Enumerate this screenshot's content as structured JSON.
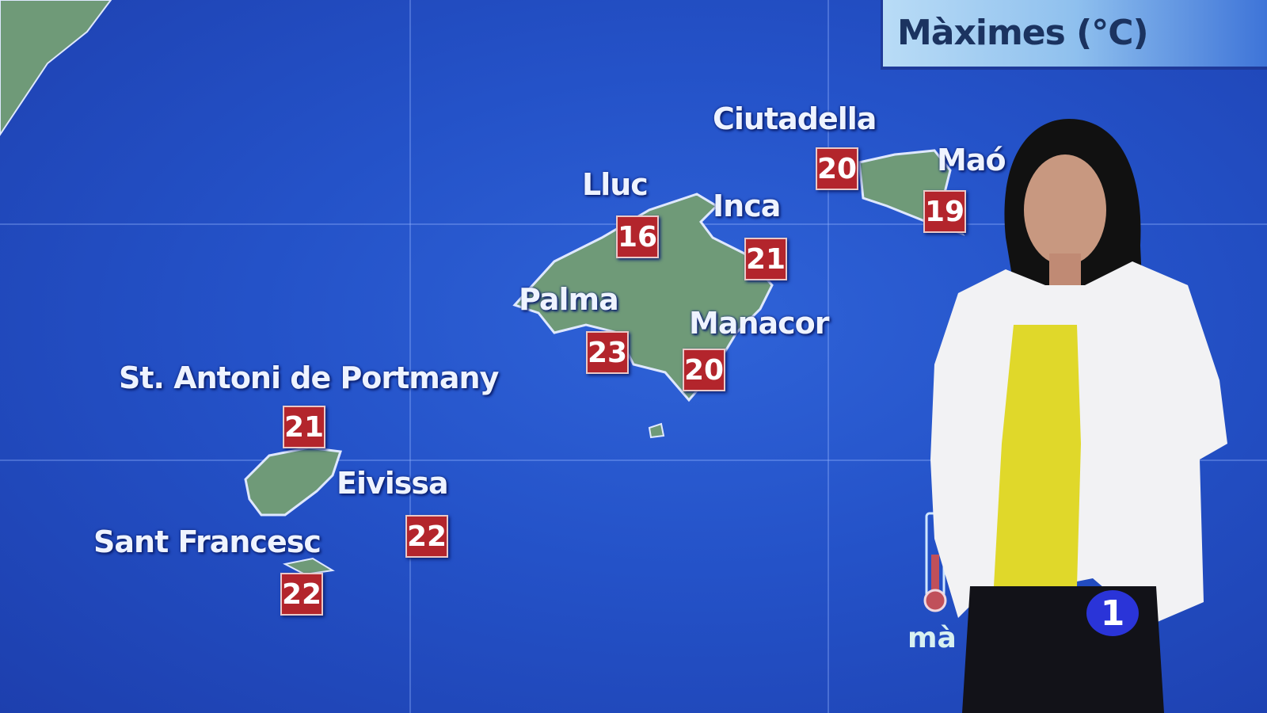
{
  "title": "Màximes (°C)",
  "cities": [
    {
      "name": "Ciutadella",
      "temp": "20"
    },
    {
      "name": "Maó",
      "temp": "19"
    },
    {
      "name": "Lluc",
      "temp": "16"
    },
    {
      "name": "Inca",
      "temp": "21"
    },
    {
      "name": "Palma",
      "temp": "23"
    },
    {
      "name": "Manacor",
      "temp": "20"
    },
    {
      "name": "St. Antoni de Portmany",
      "temp": "21"
    },
    {
      "name": "Eivissa",
      "temp": "22"
    },
    {
      "name": "Sant Francesc",
      "temp": "22"
    }
  ],
  "legend": {
    "icon": "thermometer-icon",
    "label": "mà"
  },
  "channel_logo": "1",
  "colors": {
    "sea": "#2452c8",
    "land": "#6f9a78",
    "temp_box": "#b3252c",
    "title_box": "#b9dcf6"
  }
}
